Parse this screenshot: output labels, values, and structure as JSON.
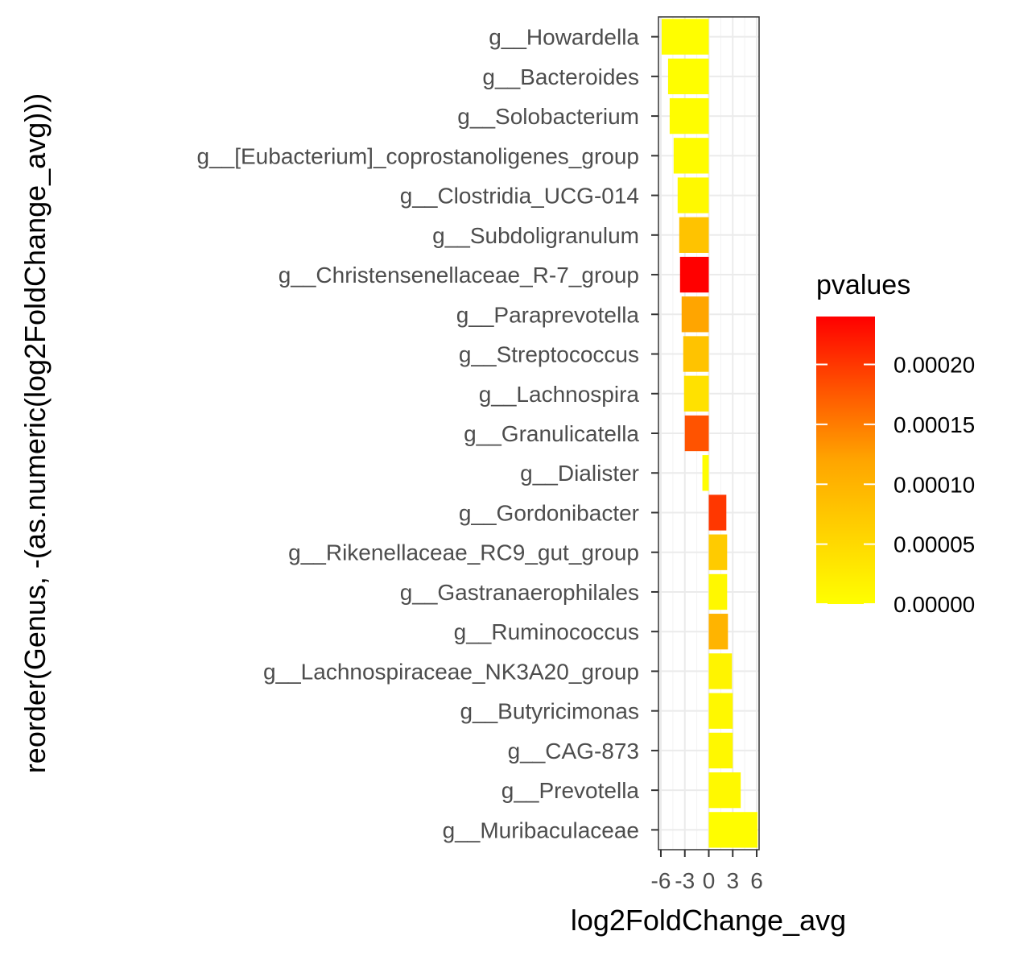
{
  "chart_data": {
    "type": "bar",
    "orientation": "horizontal",
    "xlabel": "log2FoldChange_avg",
    "ylabel": "reorder(Genus, -(as.numeric(log2FoldChange_avg)))",
    "xlim": [
      -6.3,
      6.3
    ],
    "xticks": [
      -6,
      -3,
      0,
      3,
      6
    ],
    "xtick_labels": [
      "-6",
      "-3",
      "0",
      "3",
      "6"
    ],
    "grid": true,
    "legend": {
      "title": "pvalues",
      "position": "right",
      "type": "colorbar",
      "range": [
        0,
        0.00024
      ],
      "breaks": [
        0.0,
        5e-05,
        0.0001,
        0.00015,
        0.0002
      ],
      "labels": [
        "0.00000",
        "0.00005",
        "0.00010",
        "0.00015",
        "0.00020"
      ],
      "low_color": "#ffff00",
      "high_color": "#ff0000"
    },
    "categories": [
      "g__Howardella",
      "g__Bacteroides",
      "g__Solobacterium",
      "g__[Eubacterium]_coprostanoligenes_group",
      "g__Clostridia_UCG-014",
      "g__Subdoligranulum",
      "g__Christensenellaceae_R-7_group",
      "g__Paraprevotella",
      "g__Streptococcus",
      "g__Lachnospira",
      "g__Granulicatella",
      "g__Dialister",
      "g__Gordonibacter",
      "g__Rikenellaceae_RC9_gut_group",
      "g__Gastranaerophilales",
      "g__Ruminococcus",
      "g__Lachnospiraceae_NK3A20_group",
      "g__Butyricimonas",
      "g__CAG-873",
      "g__Prevotella",
      "g__Muribaculaceae"
    ],
    "values": [
      -5.9,
      -5.1,
      -4.9,
      -4.4,
      -3.9,
      -3.7,
      -3.6,
      -3.4,
      -3.2,
      -3.1,
      -3.0,
      -0.8,
      2.2,
      2.3,
      2.3,
      2.4,
      2.9,
      3.0,
      3.0,
      4.0,
      6.1
    ],
    "pvalues": [
      1e-06,
      2e-06,
      3e-06,
      4e-06,
      8e-06,
      8e-05,
      0.00024,
      0.00012,
      8e-05,
      4e-05,
      0.00018,
      3e-06,
      0.0002,
      7e-05,
      1e-05,
      0.0001,
      1.5e-05,
      1e-05,
      1e-05,
      8e-06,
      3e-06
    ]
  }
}
